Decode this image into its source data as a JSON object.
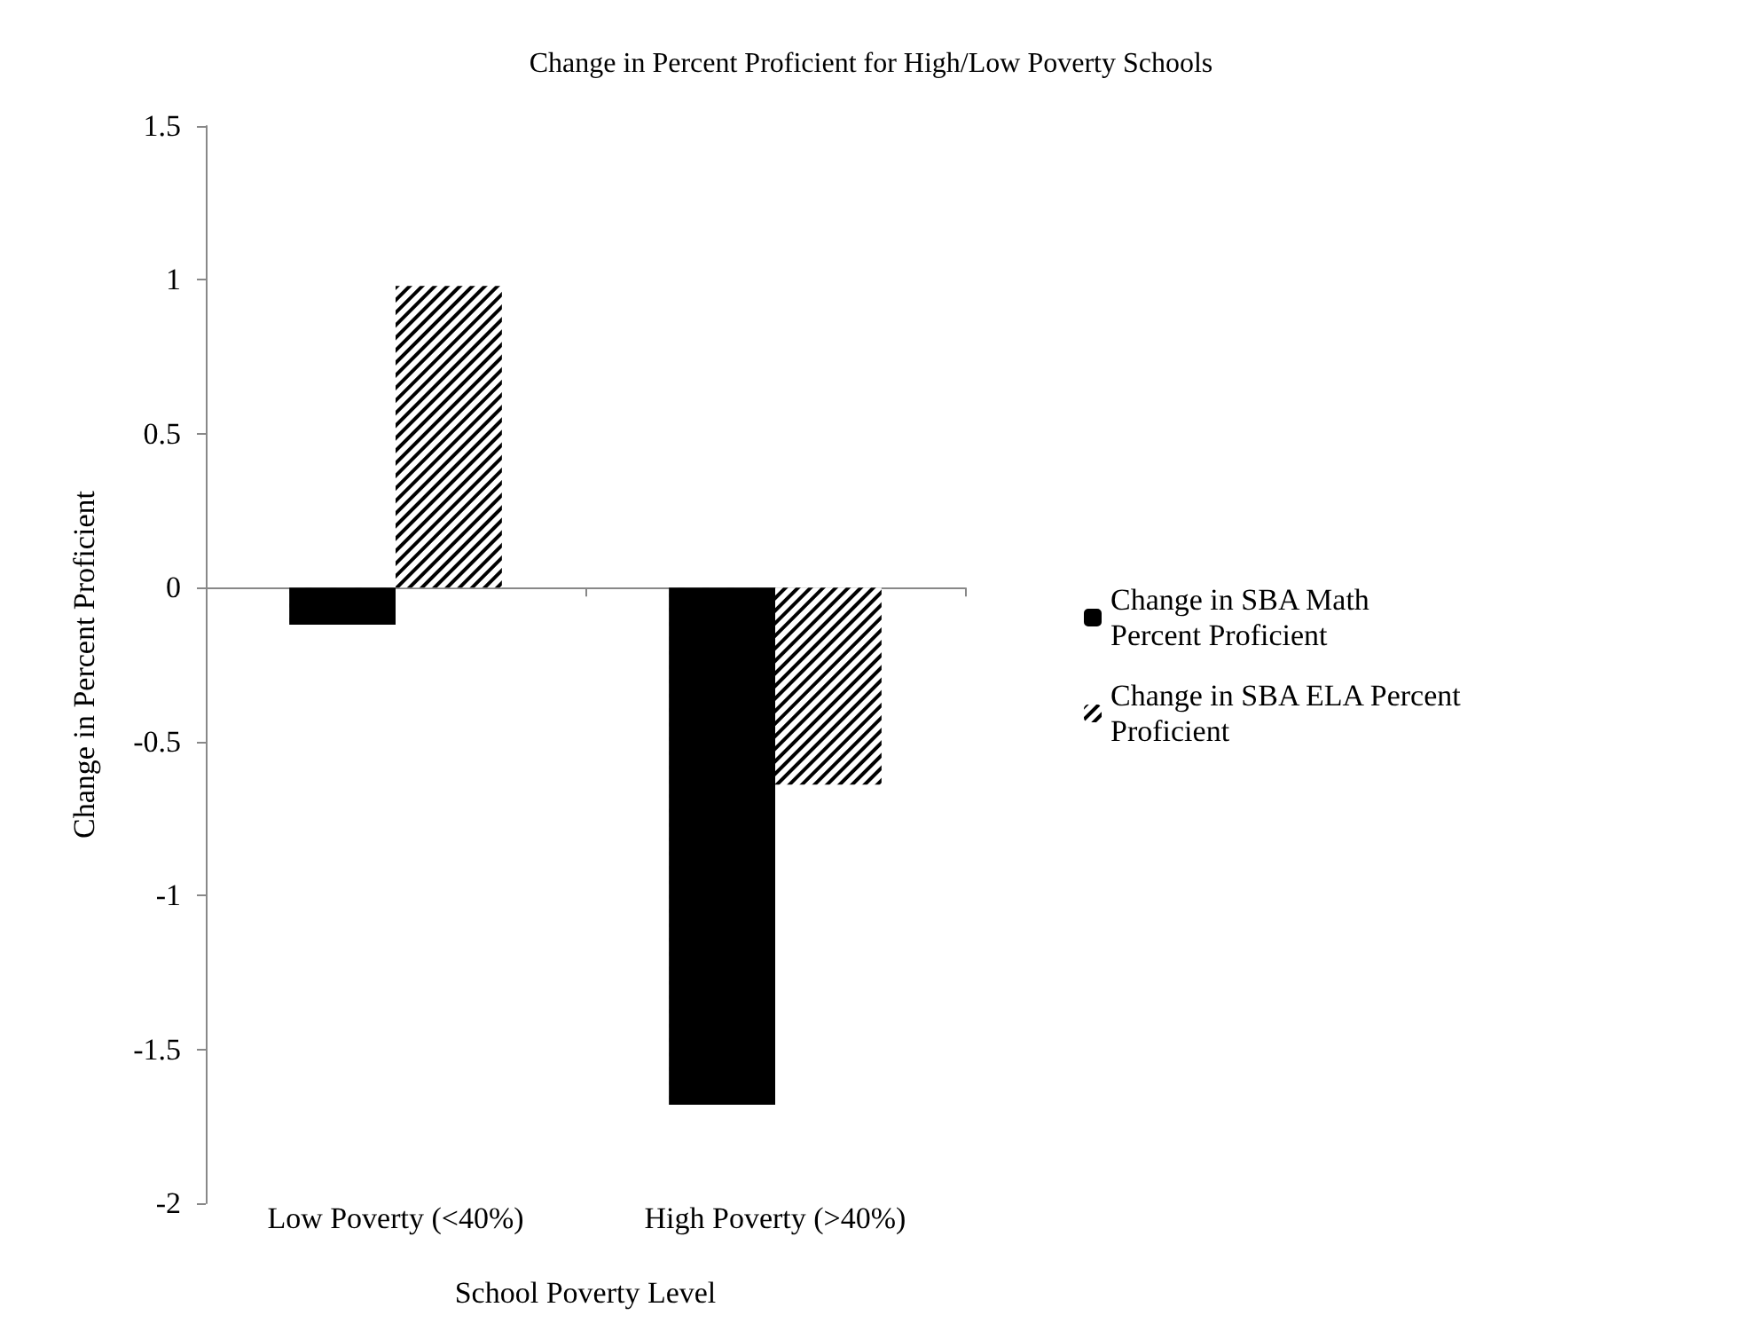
{
  "chart_data": {
    "type": "bar",
    "title": "Change in Percent Proficient for High/Low Poverty Schools",
    "xlabel": "School Poverty Level",
    "ylabel": "Change in Percent Proficient",
    "categories": [
      "Low Poverty (<40%)",
      "High Poverty (>40%)"
    ],
    "series": [
      {
        "name": "Change in SBA Math\nPercent Proficient",
        "color": "#000000",
        "values": [
          -0.12,
          -1.68
        ]
      },
      {
        "name": "Change in SBA ELA Percent\nProficient",
        "color": "#000000",
        "values": [
          0.98,
          -0.64
        ]
      }
    ],
    "ylim": [
      -2,
      1.5
    ],
    "yticks": [
      -2,
      -1.5,
      -1,
      -0.5,
      0,
      0.5,
      1,
      1.5
    ],
    "legend": "right"
  }
}
